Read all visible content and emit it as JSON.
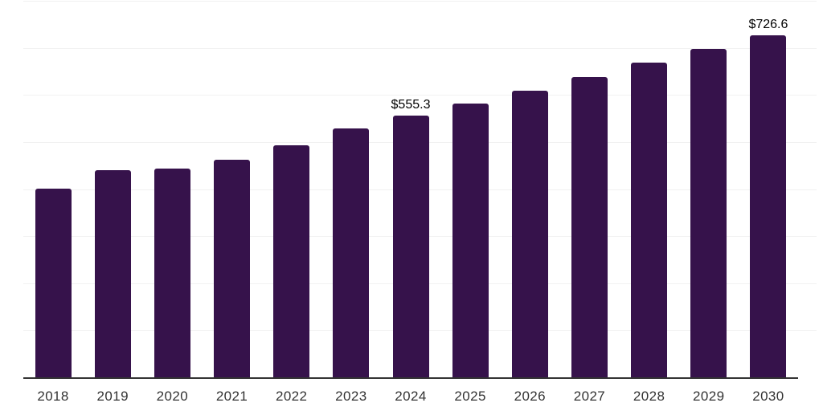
{
  "chart_data": {
    "type": "bar",
    "title": "",
    "xlabel": "",
    "ylabel": "",
    "categories": [
      "2018",
      "2019",
      "2020",
      "2021",
      "2022",
      "2023",
      "2024",
      "2025",
      "2026",
      "2027",
      "2028",
      "2029",
      "2030"
    ],
    "values": [
      401.2,
      439.6,
      443.9,
      461.7,
      492.4,
      528.2,
      555.3,
      582.4,
      609.4,
      638.3,
      668.9,
      697.9,
      726.6
    ],
    "value_prefix": "$",
    "data_labels": [
      {
        "category": "2024",
        "text": "$555.3"
      },
      {
        "category": "2030",
        "text": "$726.6"
      }
    ],
    "ylim": [
      0,
      800
    ],
    "gridline_step": 100,
    "grid": true,
    "legend": false,
    "y_tick_labels_visible": false,
    "colors": {
      "bar": "#36124b",
      "axis_line": "#333333",
      "gridline": "#f1f1f1",
      "tick_label": "#333333",
      "data_label": "#000000",
      "background": "#ffffff"
    }
  }
}
